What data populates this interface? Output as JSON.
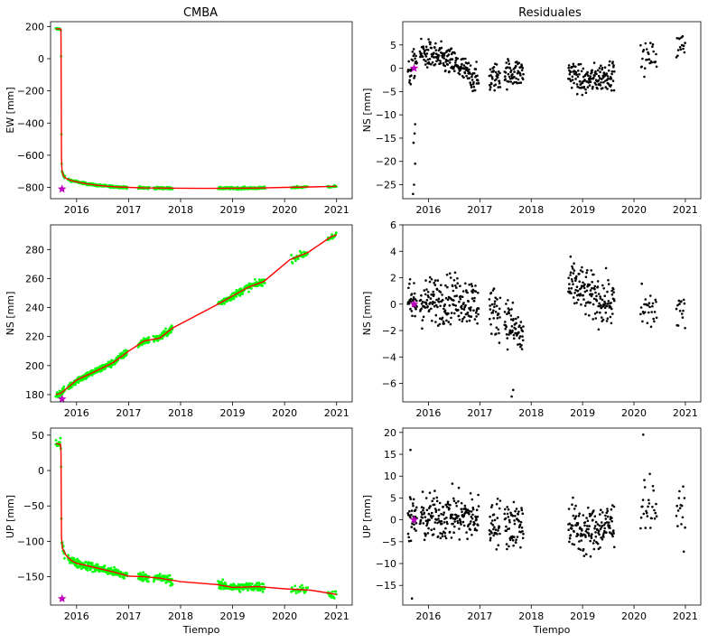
{
  "titles": {
    "left": "CMBA",
    "right": "Residuales"
  },
  "colors": {
    "obs": "#00ff00",
    "model": "#ff0000",
    "resid": "#000000",
    "star": "#c000c0"
  },
  "chart_data": [
    {
      "type": "line",
      "panel": "EW",
      "ylabel": "EW [mm]",
      "xlabel": "",
      "xlim": [
        2015.5,
        2021.3
      ],
      "ylim": [
        -870,
        230
      ],
      "xticks": [
        2016,
        2017,
        2018,
        2019,
        2020,
        2021
      ],
      "yticks": [
        -800,
        -600,
        -400,
        -200,
        0,
        200
      ],
      "gaps": [
        [
          2015.78,
          2015.83
        ],
        [
          2016.98,
          2017.18
        ],
        [
          2017.4,
          2017.48
        ],
        [
          2017.85,
          2018.72
        ],
        [
          2019.62,
          2020.12
        ],
        [
          2020.45,
          2020.82
        ]
      ],
      "model": [
        [
          2015.6,
          185
        ],
        [
          2015.69,
          185
        ],
        [
          2015.7,
          180
        ],
        [
          2015.71,
          -620
        ],
        [
          2015.72,
          -700
        ],
        [
          2015.75,
          -730
        ],
        [
          2015.8,
          -745
        ],
        [
          2015.9,
          -757
        ],
        [
          2016.0,
          -765
        ],
        [
          2016.2,
          -778
        ],
        [
          2016.4,
          -787
        ],
        [
          2016.6,
          -793
        ],
        [
          2016.8,
          -797
        ],
        [
          2017.0,
          -800
        ],
        [
          2017.3,
          -803
        ],
        [
          2017.6,
          -804
        ],
        [
          2018.0,
          -805
        ],
        [
          2018.5,
          -806
        ],
        [
          2019.0,
          -805
        ],
        [
          2019.5,
          -804
        ],
        [
          2020.0,
          -800
        ],
        [
          2020.5,
          -797
        ],
        [
          2021.0,
          -793
        ]
      ],
      "noise": 5,
      "star": [
        2015.72,
        -810
      ]
    },
    {
      "type": "scatter",
      "panel": "EW-res",
      "ylabel": "NS [mm]",
      "xlabel": "",
      "xlim": [
        2015.5,
        2021.3
      ],
      "ylim": [
        -28,
        10
      ],
      "xticks": [
        2016,
        2017,
        2018,
        2019,
        2020,
        2021
      ],
      "yticks": [
        -25,
        -20,
        -15,
        -10,
        -5,
        0,
        5
      ],
      "gaps": [
        [
          2015.78,
          2015.83
        ],
        [
          2016.98,
          2017.18
        ],
        [
          2017.4,
          2017.48
        ],
        [
          2017.85,
          2018.72
        ],
        [
          2019.62,
          2020.12
        ],
        [
          2020.45,
          2020.82
        ]
      ],
      "resid_mean": [
        [
          2015.6,
          -2
        ],
        [
          2015.8,
          3
        ],
        [
          2016.0,
          3
        ],
        [
          2016.5,
          1
        ],
        [
          2017.0,
          -3
        ],
        [
          2017.5,
          -1
        ],
        [
          2018.8,
          -1
        ],
        [
          2019.0,
          -3
        ],
        [
          2019.6,
          -1
        ],
        [
          2020.2,
          2
        ],
        [
          2020.5,
          3
        ],
        [
          2021.0,
          5
        ]
      ],
      "resid_noise": 2.2,
      "outliers": [
        [
          2015.7,
          -27
        ],
        [
          2015.72,
          -25
        ],
        [
          2015.74,
          -20.5
        ],
        [
          2015.71,
          -16
        ],
        [
          2015.73,
          -14
        ],
        [
          2015.74,
          -12
        ]
      ],
      "star": [
        2015.72,
        0
      ]
    },
    {
      "type": "line",
      "panel": "NS",
      "ylabel": "NS [mm]",
      "xlabel": "",
      "xlim": [
        2015.5,
        2021.3
      ],
      "ylim": [
        175,
        297
      ],
      "xticks": [
        2016,
        2017,
        2018,
        2019,
        2020,
        2021
      ],
      "yticks": [
        180,
        200,
        220,
        240,
        260,
        280
      ],
      "gaps": [
        [
          2015.78,
          2015.83
        ],
        [
          2016.98,
          2017.18
        ],
        [
          2017.4,
          2017.48
        ],
        [
          2017.85,
          2018.72
        ],
        [
          2019.62,
          2020.12
        ],
        [
          2020.45,
          2020.82
        ]
      ],
      "model": [
        [
          2015.6,
          180
        ],
        [
          2015.7,
          181
        ],
        [
          2016.0,
          190
        ],
        [
          2016.3,
          195
        ],
        [
          2016.7,
          202
        ],
        [
          2017.0,
          210
        ],
        [
          2017.3,
          217
        ],
        [
          2017.6,
          219
        ],
        [
          2017.85,
          226
        ],
        [
          2018.7,
          242
        ],
        [
          2019.0,
          248
        ],
        [
          2019.3,
          254
        ],
        [
          2019.6,
          258
        ],
        [
          2020.1,
          273
        ],
        [
          2020.45,
          278
        ],
        [
          2020.9,
          289
        ],
        [
          2021.0,
          290
        ]
      ],
      "noise": 1.8,
      "star": [
        2015.72,
        177
      ]
    },
    {
      "type": "scatter",
      "panel": "NS-res",
      "ylabel": "NS [mm]",
      "xlabel": "",
      "xlim": [
        2015.5,
        2021.3
      ],
      "ylim": [
        -7.4,
        6
      ],
      "xticks": [
        2016,
        2017,
        2018,
        2019,
        2020,
        2021
      ],
      "yticks": [
        -6,
        -4,
        -2,
        0,
        2,
        4,
        6
      ],
      "gaps": [
        [
          2015.78,
          2015.83
        ],
        [
          2016.98,
          2017.18
        ],
        [
          2017.4,
          2017.48
        ],
        [
          2017.85,
          2018.72
        ],
        [
          2019.62,
          2020.12
        ],
        [
          2020.45,
          2020.82
        ]
      ],
      "resid_mean": [
        [
          2015.6,
          0
        ],
        [
          2016.5,
          0.5
        ],
        [
          2017.0,
          0
        ],
        [
          2017.5,
          -1
        ],
        [
          2017.8,
          -2.5
        ],
        [
          2018.8,
          1.5
        ],
        [
          2019.2,
          0.5
        ],
        [
          2019.6,
          0
        ],
        [
          2020.2,
          -0.5
        ],
        [
          2021.0,
          -0.5
        ]
      ],
      "resid_noise": 1.3,
      "outliers": [
        [
          2017.62,
          -7
        ],
        [
          2017.65,
          -6.5
        ]
      ],
      "star": [
        2015.72,
        0
      ]
    },
    {
      "type": "line",
      "panel": "UP",
      "ylabel": "UP [mm]",
      "xlabel": "Tiempo",
      "xlim": [
        2015.5,
        2021.3
      ],
      "ylim": [
        -190,
        60
      ],
      "xticks": [
        2016,
        2017,
        2018,
        2019,
        2020,
        2021
      ],
      "yticks": [
        -150,
        -100,
        -50,
        0,
        50
      ],
      "gaps": [
        [
          2015.78,
          2015.83
        ],
        [
          2016.98,
          2017.18
        ],
        [
          2017.4,
          2017.48
        ],
        [
          2017.85,
          2018.72
        ],
        [
          2019.62,
          2020.12
        ],
        [
          2020.45,
          2020.82
        ]
      ],
      "model": [
        [
          2015.6,
          38
        ],
        [
          2015.69,
          37
        ],
        [
          2015.7,
          30
        ],
        [
          2015.71,
          -95
        ],
        [
          2015.73,
          -110
        ],
        [
          2015.8,
          -120
        ],
        [
          2015.9,
          -127
        ],
        [
          2016.0,
          -131
        ],
        [
          2016.3,
          -136
        ],
        [
          2016.7,
          -143
        ],
        [
          2017.0,
          -149
        ],
        [
          2017.3,
          -150
        ],
        [
          2017.6,
          -152
        ],
        [
          2018.0,
          -157
        ],
        [
          2018.7,
          -161
        ],
        [
          2019.0,
          -165
        ],
        [
          2019.5,
          -164
        ],
        [
          2020.0,
          -167
        ],
        [
          2020.5,
          -169
        ],
        [
          2021.0,
          -175
        ]
      ],
      "noise": 4.5,
      "star": [
        2015.72,
        -181
      ]
    },
    {
      "type": "scatter",
      "panel": "UP-res",
      "ylabel": "UP [mm]",
      "xlabel": "Tiempo",
      "xlim": [
        2015.5,
        2021.3
      ],
      "ylim": [
        -19.5,
        21
      ],
      "xticks": [
        2016,
        2017,
        2018,
        2019,
        2020,
        2021
      ],
      "yticks": [
        -15,
        -10,
        -5,
        0,
        5,
        10,
        15,
        20
      ],
      "gaps": [
        [
          2015.78,
          2015.83
        ],
        [
          2016.98,
          2017.18
        ],
        [
          2017.4,
          2017.48
        ],
        [
          2017.85,
          2018.72
        ],
        [
          2019.62,
          2020.12
        ],
        [
          2020.45,
          2020.82
        ]
      ],
      "resid_mean": [
        [
          2015.6,
          0
        ],
        [
          2016.5,
          1
        ],
        [
          2017.0,
          0
        ],
        [
          2017.5,
          -1
        ],
        [
          2018.8,
          -1
        ],
        [
          2019.0,
          -3
        ],
        [
          2019.6,
          -1
        ],
        [
          2020.2,
          4
        ],
        [
          2021.0,
          1
        ]
      ],
      "resid_noise": 4.0,
      "outliers": [
        [
          2015.68,
          -18
        ],
        [
          2020.18,
          19.5
        ],
        [
          2015.65,
          16
        ]
      ],
      "star": [
        2015.72,
        0
      ]
    }
  ]
}
